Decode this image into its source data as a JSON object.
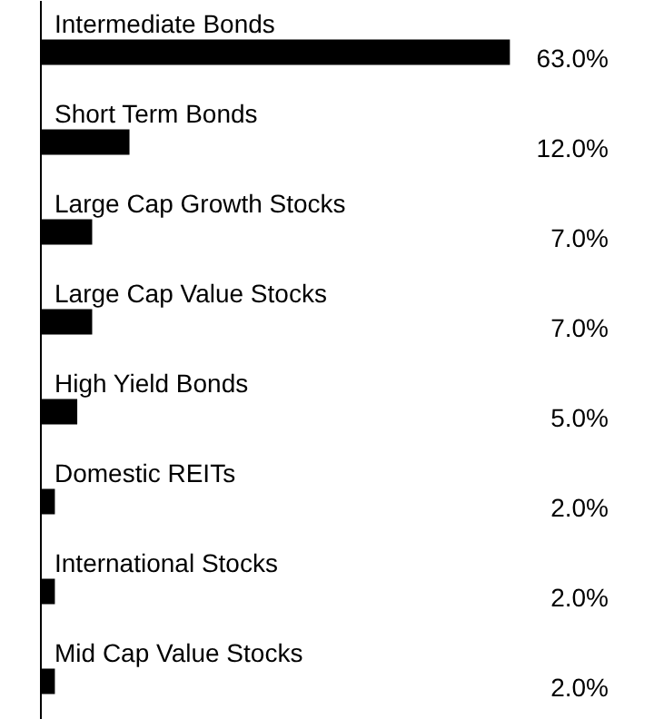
{
  "chart_data": {
    "type": "bar",
    "orientation": "horizontal",
    "categories": [
      "Intermediate Bonds",
      "Short Term Bonds",
      "Large Cap Growth Stocks",
      "Large Cap Value Stocks",
      "High Yield Bonds",
      "Domestic REITs",
      "International Stocks",
      "Mid Cap Value Stocks"
    ],
    "values": [
      63.0,
      12.0,
      7.0,
      7.0,
      5.0,
      2.0,
      2.0,
      2.0
    ],
    "value_labels": [
      "63.0%",
      "12.0%",
      "7.0%",
      "7.0%",
      "5.0%",
      "2.0%",
      "2.0%",
      "2.0%"
    ],
    "color": "#000000"
  }
}
